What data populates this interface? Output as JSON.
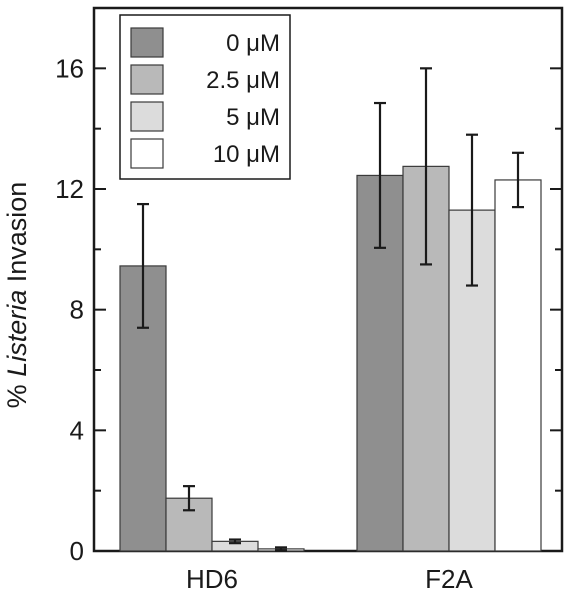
{
  "chart_data": {
    "type": "bar",
    "categories": [
      "HD6",
      "F2A"
    ],
    "ylabel": {
      "prefix": "% ",
      "italic": "Listeria",
      "suffix": " Invasion"
    },
    "ylim": [
      0,
      18
    ],
    "yticks": [
      0,
      4,
      8,
      12,
      16
    ],
    "minor_step": 2,
    "grid": false,
    "legend": "top-left",
    "series": [
      {
        "name": "0 μM",
        "color": "#8f8f8f",
        "values": [
          9.45,
          12.45
        ],
        "errors": [
          2.05,
          2.4
        ]
      },
      {
        "name": "2.5 μM",
        "color": "#b9b9b9",
        "values": [
          1.75,
          12.75
        ],
        "errors": [
          0.4,
          3.25
        ]
      },
      {
        "name": "5 μM",
        "color": "#dcdcdc",
        "values": [
          0.32,
          11.3
        ],
        "errors": [
          0.06,
          2.5
        ]
      },
      {
        "name": "10 μM",
        "color": "#ffffff",
        "values": [
          0.07,
          12.3
        ],
        "errors": [
          0.05,
          0.9
        ]
      }
    ]
  }
}
